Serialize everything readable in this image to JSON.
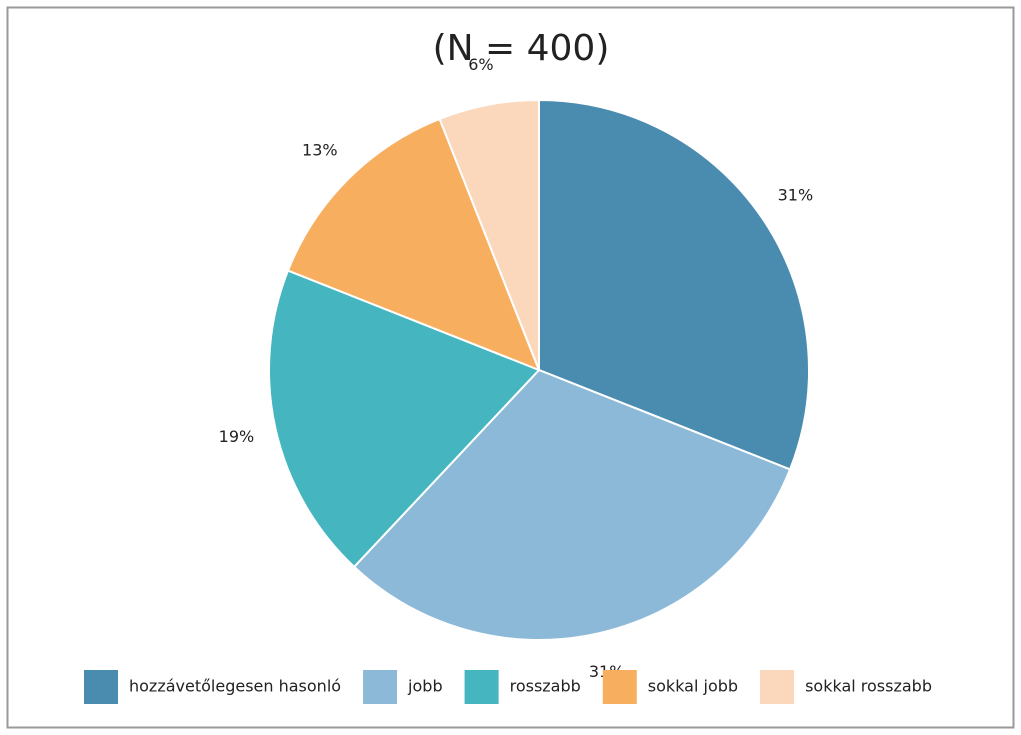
{
  "chart_data": {
    "type": "pie",
    "title": "(N = 400)",
    "categories": [
      "hozzávetőlegesen hasonló",
      "jobb",
      "rosszabb",
      "sokkal jobb",
      "sokkal rosszabb"
    ],
    "values": [
      31,
      31,
      19,
      13,
      6
    ],
    "value_labels": [
      "31%",
      "31%",
      "19%",
      "13%",
      "6%"
    ],
    "colors": [
      "#4a8bb0",
      "#8db9d8",
      "#45b5c0",
      "#f7af5f",
      "#fbd7bb"
    ],
    "legend": "bottom"
  }
}
